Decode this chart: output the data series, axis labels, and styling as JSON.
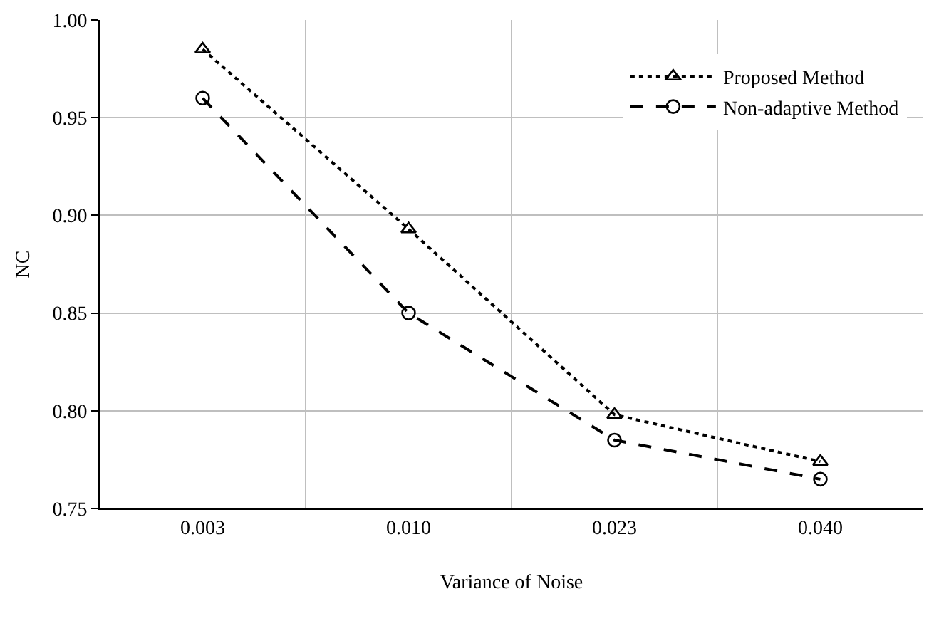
{
  "chart_data": {
    "type": "line",
    "xlabel": "Variance of Noise",
    "ylabel": "NC",
    "categories": [
      "0.003",
      "0.010",
      "0.023",
      "0.040"
    ],
    "ylim": [
      0.75,
      1.0
    ],
    "yticks": [
      {
        "value": 0.75,
        "label": "0.75"
      },
      {
        "value": 0.8,
        "label": "0.80"
      },
      {
        "value": 0.85,
        "label": "0.85"
      },
      {
        "value": 0.9,
        "label": "0.90"
      },
      {
        "value": 0.95,
        "label": "0.95"
      },
      {
        "value": 1.0,
        "label": "1.00"
      }
    ],
    "grid": true,
    "legend": "top right",
    "series": [
      {
        "name": "Proposed Method",
        "color": "#000000",
        "marker": "triangle",
        "line_style": "dotted",
        "values": [
          0.985,
          0.893,
          0.798,
          0.774
        ]
      },
      {
        "name": "Non-adaptive Method",
        "color": "#000000",
        "marker": "circle",
        "line_style": "dashed",
        "values": [
          0.96,
          0.85,
          0.785,
          0.765
        ]
      }
    ]
  }
}
